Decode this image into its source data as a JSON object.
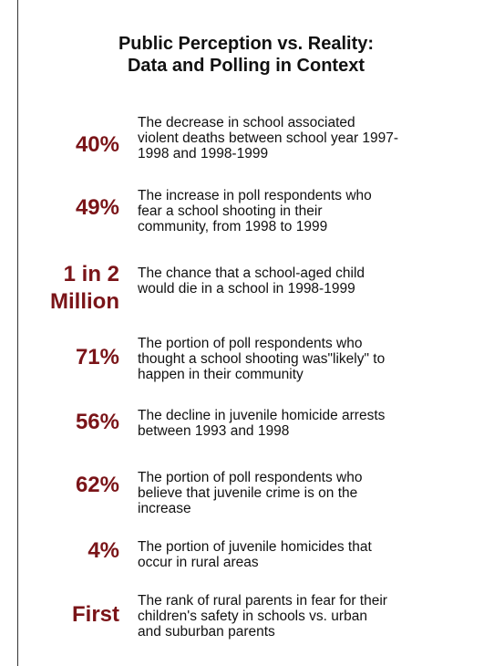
{
  "title": {
    "line1": "Public Perception vs. Reality:",
    "line2": "Data and Polling in Context"
  },
  "colors": {
    "stat": "#7a1418",
    "text": "#111111",
    "background": "#ffffff",
    "border": "#333333"
  },
  "facts": [
    {
      "stat": [
        "40%"
      ],
      "desc": [
        "The decrease in school associated",
        "violent deaths between school year 1997-",
        "1998 and 1998-1999"
      ]
    },
    {
      "stat": [
        "49%"
      ],
      "desc": [
        "The increase in poll respondents who",
        "fear a school shooting in their",
        "community, from 1998 to 1999"
      ]
    },
    {
      "stat": [
        "1 in 2",
        "Million"
      ],
      "desc": [
        "The chance that a school-aged child",
        "would die in a school in 1998-1999"
      ]
    },
    {
      "stat": [
        "71%"
      ],
      "desc": [
        "The portion of poll respondents who",
        "thought a school shooting was\"likely\" to",
        "happen in their community"
      ]
    },
    {
      "stat": [
        "56%"
      ],
      "desc": [
        "The decline in juvenile homicide arrests",
        "between 1993 and 1998"
      ]
    },
    {
      "stat": [
        "62%"
      ],
      "desc": [
        "The portion of poll respondents who",
        "believe that juvenile crime is on the",
        "increase"
      ]
    },
    {
      "stat": [
        "4%"
      ],
      "desc": [
        "The portion of juvenile homicides that",
        "occur in rural areas"
      ]
    },
    {
      "stat": [
        "First"
      ],
      "desc": [
        "The rank of rural parents in fear for their",
        "children's safety in schools vs. urban",
        "and suburban parents"
      ]
    }
  ]
}
